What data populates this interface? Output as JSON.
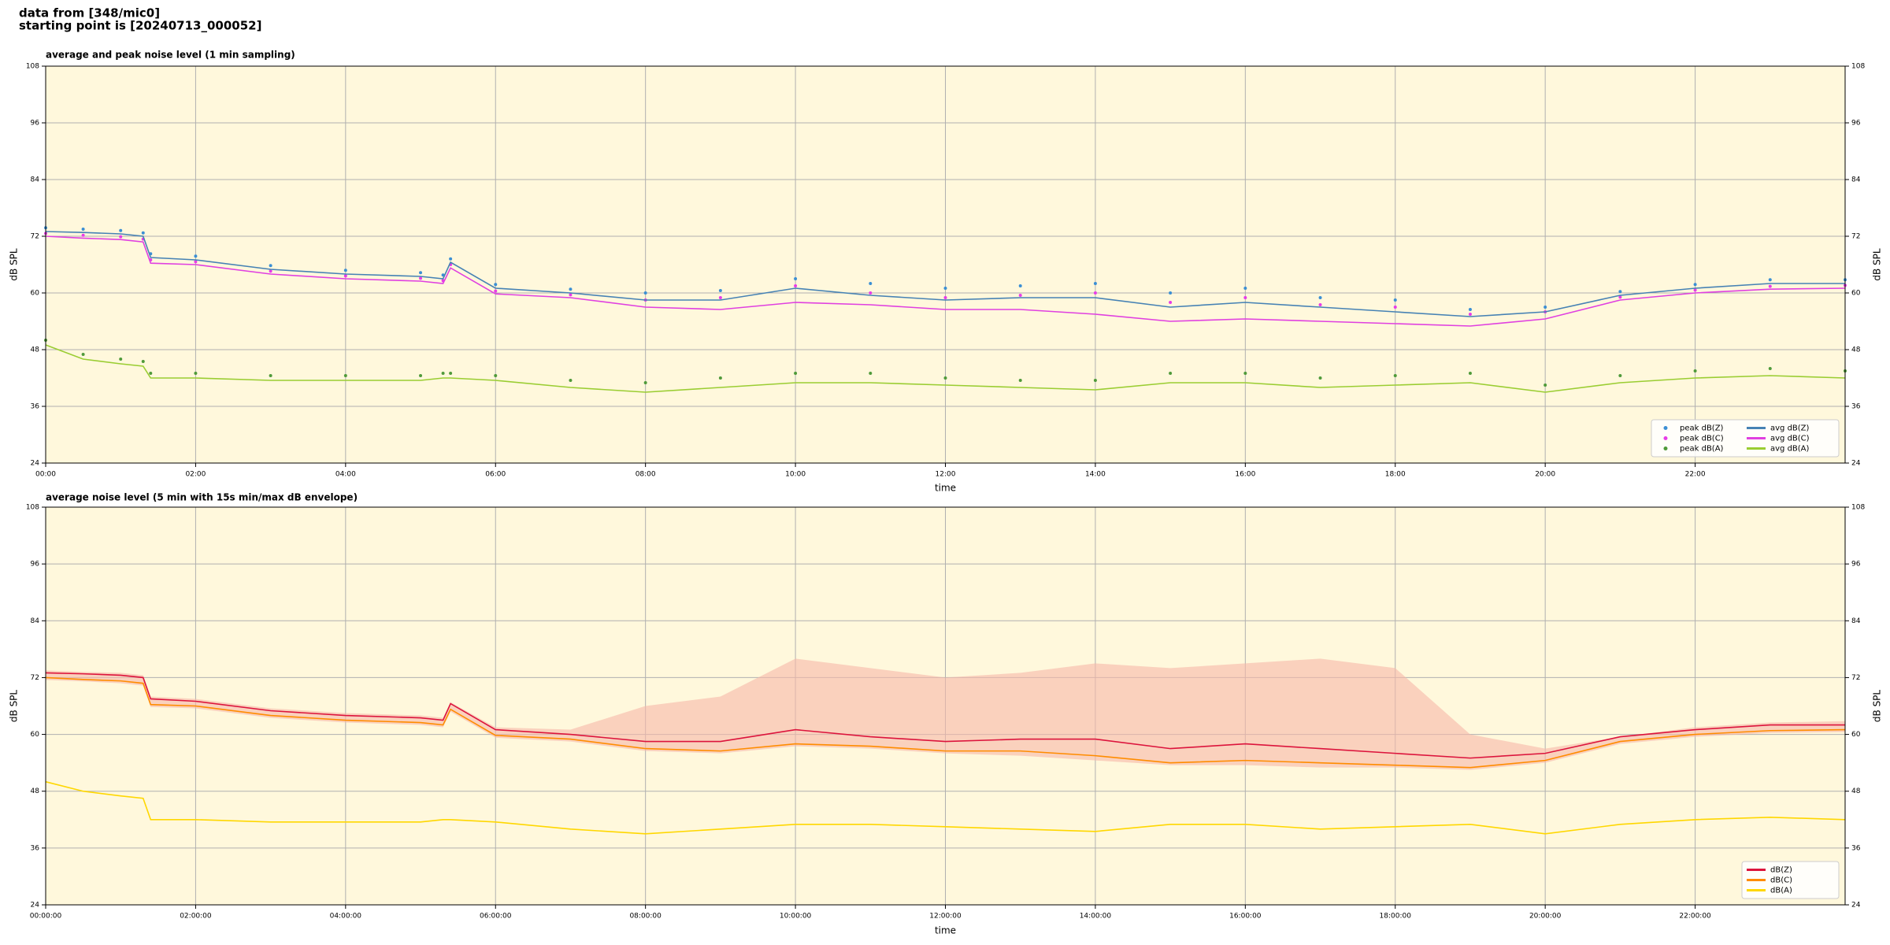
{
  "header": {
    "lines": [
      "data from [348/mic0]",
      "starting point is [20240713_000052]"
    ]
  },
  "chart_data": [
    {
      "type": "line",
      "title": "average and peak noise level (1 min sampling)",
      "xlabel": "time",
      "ylabel": "dB SPL",
      "xlim": [
        0,
        24
      ],
      "ylim": [
        24,
        108
      ],
      "yticks": [
        24,
        36,
        48,
        60,
        72,
        84,
        96,
        108
      ],
      "right_axis": true,
      "grid": true,
      "background": "#fff8dc",
      "xticks": [
        {
          "value": 0,
          "label": "00:00"
        },
        {
          "value": 2,
          "label": "02:00"
        },
        {
          "value": 4,
          "label": "04:00"
        },
        {
          "value": 6,
          "label": "06:00"
        },
        {
          "value": 8,
          "label": "08:00"
        },
        {
          "value": 10,
          "label": "10:00"
        },
        {
          "value": 12,
          "label": "12:00"
        },
        {
          "value": 14,
          "label": "14:00"
        },
        {
          "value": 16,
          "label": "16:00"
        },
        {
          "value": 18,
          "label": "18:00"
        },
        {
          "value": 20,
          "label": "20:00"
        },
        {
          "value": 22,
          "label": "22:00"
        }
      ],
      "legend": "lower right",
      "legend_columns": 2,
      "x": [
        0,
        0.5,
        1.0,
        1.3,
        1.4,
        2,
        3,
        4,
        5,
        5.3,
        5.4,
        6,
        7,
        8,
        9,
        10,
        11,
        12,
        13,
        14,
        15,
        16,
        17,
        18,
        19,
        20,
        21,
        22,
        23,
        24
      ],
      "series": [
        {
          "name": "peak dB(Z)",
          "type": "scatter",
          "color": "#3b8fd4",
          "values": [
            73.8,
            73.5,
            73.2,
            72.7,
            68.3,
            67.8,
            65.8,
            64.8,
            64.3,
            63.8,
            67.2,
            61.8,
            60.8,
            60,
            60.5,
            63,
            62,
            61,
            61.5,
            62,
            60,
            61,
            59,
            58.5,
            56.5,
            57,
            60.3,
            61.8,
            62.8,
            62.8
          ]
        },
        {
          "name": "peak dB(C)",
          "type": "scatter",
          "color": "#e83ce8",
          "values": [
            72.6,
            72.2,
            71.9,
            71.4,
            67,
            66.6,
            64.6,
            63.6,
            63.1,
            62.6,
            66,
            60.4,
            59.6,
            58.5,
            59,
            61.5,
            60,
            59,
            59.5,
            60,
            58,
            59,
            57.5,
            57,
            55.5,
            56,
            59.1,
            60.6,
            61.4,
            61.6
          ]
        },
        {
          "name": "peak dB(A)",
          "type": "scatter",
          "color": "#4f9a3a",
          "values": [
            50,
            47,
            46,
            45.5,
            43,
            43,
            42.5,
            42.5,
            42.5,
            43,
            43,
            42.5,
            41.5,
            41,
            42,
            43,
            43,
            42,
            41.5,
            41.5,
            43,
            43,
            42,
            42.5,
            43,
            40.5,
            42.5,
            43.5,
            44,
            43.5
          ]
        },
        {
          "name": "avg dB(Z)",
          "type": "line",
          "color": "#4682b4",
          "values": [
            73,
            72.8,
            72.5,
            72,
            67.5,
            67,
            65,
            64,
            63.5,
            63,
            66.5,
            61,
            60,
            58.5,
            58.5,
            61,
            59.5,
            58.5,
            59,
            59,
            57,
            58,
            57,
            56,
            55,
            56,
            59.5,
            61,
            62,
            62
          ]
        },
        {
          "name": "avg dB(C)",
          "type": "line",
          "color": "#e040e0",
          "values": [
            72,
            71.6,
            71.3,
            70.8,
            66.3,
            66,
            64,
            63,
            62.5,
            62,
            65.3,
            59.8,
            59,
            57,
            56.5,
            58,
            57.5,
            56.5,
            56.5,
            55.5,
            54,
            54.5,
            54,
            53.5,
            53,
            54.5,
            58.5,
            60,
            60.8,
            61
          ]
        },
        {
          "name": "avg dB(A)",
          "type": "line",
          "color": "#9acd32",
          "values": [
            49,
            46,
            45,
            44.5,
            42,
            42,
            41.5,
            41.5,
            41.5,
            42,
            42,
            41.5,
            40,
            39,
            40,
            41,
            41,
            40.5,
            40,
            39.5,
            41,
            41,
            40,
            40.5,
            41,
            39,
            41,
            42,
            42.5,
            42
          ]
        }
      ]
    },
    {
      "type": "line",
      "title": "average noise level (5 min with 15s min/max dB envelope)",
      "xlabel": "time",
      "ylabel": "dB SPL",
      "xlim": [
        0,
        24
      ],
      "ylim": [
        24,
        108
      ],
      "yticks": [
        24,
        36,
        48,
        60,
        72,
        84,
        96,
        108
      ],
      "right_axis": true,
      "grid": true,
      "background": "#fff8dc",
      "xticks": [
        {
          "value": 0,
          "label": "00:00:00"
        },
        {
          "value": 2,
          "label": "02:00:00"
        },
        {
          "value": 4,
          "label": "04:00:00"
        },
        {
          "value": 6,
          "label": "06:00:00"
        },
        {
          "value": 8,
          "label": "08:00:00"
        },
        {
          "value": 10,
          "label": "10:00:00"
        },
        {
          "value": 12,
          "label": "12:00:00"
        },
        {
          "value": 14,
          "label": "14:00:00"
        },
        {
          "value": 16,
          "label": "16:00:00"
        },
        {
          "value": 18,
          "label": "18:00:00"
        },
        {
          "value": 20,
          "label": "20:00:00"
        },
        {
          "value": 22,
          "label": "22:00:00"
        }
      ],
      "legend": "lower right",
      "legend_columns": 1,
      "x": [
        0,
        0.5,
        1.0,
        1.3,
        1.4,
        2,
        3,
        4,
        5,
        5.3,
        5.4,
        6,
        7,
        8,
        9,
        10,
        11,
        12,
        13,
        14,
        15,
        16,
        17,
        18,
        19,
        20,
        21,
        22,
        23,
        24
      ],
      "envelope": {
        "color": "#f6b8a8",
        "upper": [
          73.5,
          73.2,
          73,
          72.5,
          68,
          67.5,
          65.5,
          64.5,
          64,
          63.5,
          66.8,
          61.5,
          61,
          66,
          68,
          76,
          74,
          72,
          73,
          75,
          74,
          75,
          76,
          74,
          60,
          57,
          59.5,
          61.5,
          62.5,
          62.8
        ],
        "lower": [
          71.5,
          71.2,
          70.8,
          70.3,
          65.8,
          65.5,
          63.5,
          62.5,
          62,
          61.5,
          64.8,
          59.3,
          58.5,
          56.5,
          56,
          57.5,
          57,
          56,
          55.5,
          54.5,
          53.5,
          53.5,
          53,
          53,
          52.5,
          54,
          58,
          59.5,
          60.3,
          60.5
        ]
      },
      "series": [
        {
          "name": "dB(Z)",
          "type": "line",
          "color": "#dc143c",
          "values": [
            73,
            72.8,
            72.5,
            72,
            67.5,
            67,
            65,
            64,
            63.5,
            63,
            66.5,
            61,
            60,
            58.5,
            58.5,
            61,
            59.5,
            58.5,
            59,
            59,
            57,
            58,
            57,
            56,
            55,
            56,
            59.5,
            61,
            62,
            62
          ]
        },
        {
          "name": "dB(C)",
          "type": "line",
          "color": "#ff8c00",
          "values": [
            72,
            71.6,
            71.3,
            70.8,
            66.3,
            66,
            64,
            63,
            62.5,
            62,
            65.3,
            59.8,
            59,
            57,
            56.5,
            58,
            57.5,
            56.5,
            56.5,
            55.5,
            54,
            54.5,
            54,
            53.5,
            53,
            54.5,
            58.5,
            60,
            60.8,
            61
          ]
        },
        {
          "name": "dB(A)",
          "type": "line",
          "color": "#ffd700",
          "values": [
            50,
            48,
            47,
            46.5,
            42,
            42,
            41.5,
            41.5,
            41.5,
            42,
            42,
            41.5,
            40,
            39,
            40,
            41,
            41,
            40.5,
            40,
            39.5,
            41,
            41,
            40,
            40.5,
            41,
            39,
            41,
            42,
            42.5,
            42
          ]
        }
      ]
    }
  ]
}
